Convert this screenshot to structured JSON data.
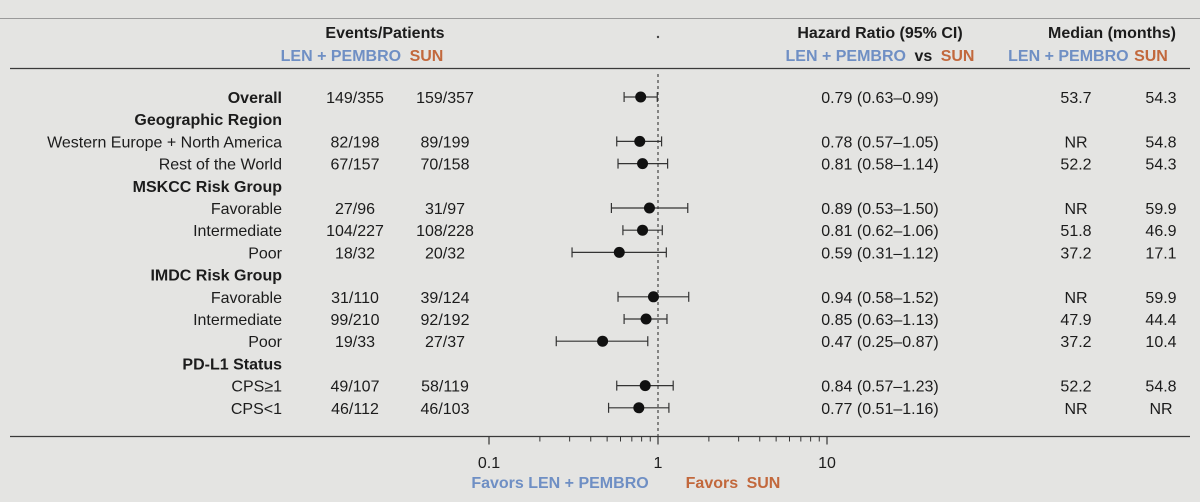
{
  "headers": {
    "events_patients": "Events/Patients",
    "hr_title": "Hazard Ratio (95% CI)",
    "median_title": "Median (months)",
    "arm_a": "LEN + PEMBRO",
    "arm_b": "SUN",
    "vs": "vs"
  },
  "axis": {
    "ticks": [
      "0.1",
      "1",
      "10"
    ],
    "favors_left": "Favors LEN + PEMBRO",
    "favors_right_prefix": "Favors",
    "favors_right_arm": "SUN"
  },
  "colors": {
    "arm_a": "#6f8fc4",
    "arm_b": "#c2683c",
    "marker": "#111111",
    "reference_line": "#444444"
  },
  "chart_data": {
    "type": "forest",
    "x_scale": "log",
    "xlim": [
      0.1,
      10
    ],
    "reference_value": 1,
    "rows": [
      {
        "label": "Overall",
        "bold": true,
        "events_a": "149/355",
        "events_b": "159/357",
        "hr": 0.79,
        "ci_low": 0.63,
        "ci_high": 0.99,
        "hr_text": "0.79 (0.63–0.99)",
        "median_a": "53.7",
        "median_b": "54.3"
      },
      {
        "label": "Geographic Region",
        "header": true
      },
      {
        "label": "Western Europe + North America",
        "events_a": "82/198",
        "events_b": "89/199",
        "hr": 0.78,
        "ci_low": 0.57,
        "ci_high": 1.05,
        "hr_text": "0.78 (0.57–1.05)",
        "median_a": "NR",
        "median_b": "54.8"
      },
      {
        "label": "Rest of the World",
        "events_a": "67/157",
        "events_b": "70/158",
        "hr": 0.81,
        "ci_low": 0.58,
        "ci_high": 1.14,
        "hr_text": "0.81 (0.58–1.14)",
        "median_a": "52.2",
        "median_b": "54.3"
      },
      {
        "label": "MSKCC Risk Group",
        "header": true
      },
      {
        "label": "Favorable",
        "events_a": "27/96",
        "events_b": "31/97",
        "hr": 0.89,
        "ci_low": 0.53,
        "ci_high": 1.5,
        "hr_text": "0.89 (0.53–1.50)",
        "median_a": "NR",
        "median_b": "59.9"
      },
      {
        "label": "Intermediate",
        "events_a": "104/227",
        "events_b": "108/228",
        "hr": 0.81,
        "ci_low": 0.62,
        "ci_high": 1.06,
        "hr_text": "0.81 (0.62–1.06)",
        "median_a": "51.8",
        "median_b": "46.9"
      },
      {
        "label": "Poor",
        "events_a": "18/32",
        "events_b": "20/32",
        "hr": 0.59,
        "ci_low": 0.31,
        "ci_high": 1.12,
        "hr_text": "0.59 (0.31–1.12)",
        "median_a": "37.2",
        "median_b": "17.1"
      },
      {
        "label": "IMDC Risk Group",
        "header": true
      },
      {
        "label": "Favorable",
        "events_a": "31/110",
        "events_b": "39/124",
        "hr": 0.94,
        "ci_low": 0.58,
        "ci_high": 1.52,
        "hr_text": "0.94 (0.58–1.52)",
        "median_a": "NR",
        "median_b": "59.9"
      },
      {
        "label": "Intermediate",
        "events_a": "99/210",
        "events_b": "92/192",
        "hr": 0.85,
        "ci_low": 0.63,
        "ci_high": 1.13,
        "hr_text": "0.85 (0.63–1.13)",
        "median_a": "47.9",
        "median_b": "44.4"
      },
      {
        "label": "Poor",
        "events_a": "19/33",
        "events_b": "27/37",
        "hr": 0.47,
        "ci_low": 0.25,
        "ci_high": 0.87,
        "hr_text": "0.47 (0.25–0.87)",
        "median_a": "37.2",
        "median_b": "10.4"
      },
      {
        "label": "PD-L1 Status",
        "header": true
      },
      {
        "label": "CPS≥1",
        "events_a": "49/107",
        "events_b": "58/119",
        "hr": 0.84,
        "ci_low": 0.57,
        "ci_high": 1.23,
        "hr_text": "0.84 (0.57–1.23)",
        "median_a": "52.2",
        "median_b": "54.8"
      },
      {
        "label": "CPS<1",
        "events_a": "46/112",
        "events_b": "46/103",
        "hr": 0.77,
        "ci_low": 0.51,
        "ci_high": 1.16,
        "hr_text": "0.77 (0.51–1.16)",
        "median_a": "NR",
        "median_b": "NR"
      }
    ]
  }
}
